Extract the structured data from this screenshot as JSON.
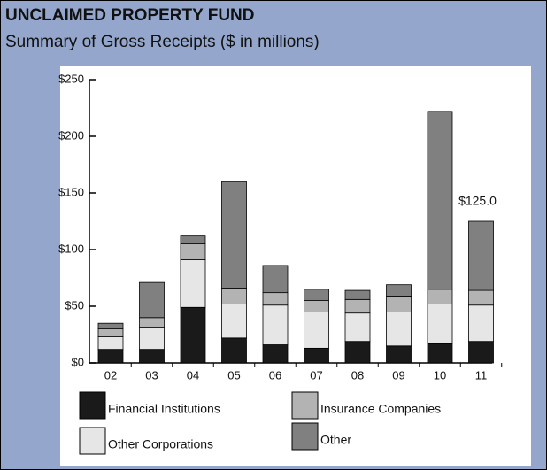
{
  "chart_data": {
    "type": "stacked_bar",
    "title": "UNCLAIMED PROPERTY FUND",
    "subtitle": "Summary of Gross Receipts  ($ in millions)",
    "categories": [
      "02",
      "03",
      "04",
      "05",
      "06",
      "07",
      "08",
      "09",
      "10",
      "11"
    ],
    "series": [
      {
        "name": "Financial Institutions",
        "color": "#1a1a1a",
        "values": [
          12,
          12,
          49,
          22,
          16,
          13,
          19,
          15,
          17,
          19
        ]
      },
      {
        "name": "Other Corporations",
        "color": "#e6e6e6",
        "values": [
          11,
          19,
          42,
          30,
          35,
          32,
          25,
          30,
          35,
          32
        ]
      },
      {
        "name": "Insurance Companies",
        "color": "#b3b3b3",
        "values": [
          7,
          9,
          14,
          14,
          11,
          10,
          12,
          14,
          13,
          13
        ]
      },
      {
        "name": "Other",
        "color": "#808080",
        "values": [
          5,
          31,
          7,
          94,
          24,
          10,
          8,
          10,
          157,
          61
        ]
      }
    ],
    "annotation": "$125.0",
    "ylim": [
      0,
      250
    ],
    "yticks": [
      {
        "value": 0,
        "label": "$0"
      },
      {
        "value": 50,
        "label": "$50"
      },
      {
        "value": 100,
        "label": "$100"
      },
      {
        "value": 150,
        "label": "$150"
      },
      {
        "value": 200,
        "label": "$200"
      },
      {
        "value": 250,
        "label": "$250"
      }
    ]
  }
}
